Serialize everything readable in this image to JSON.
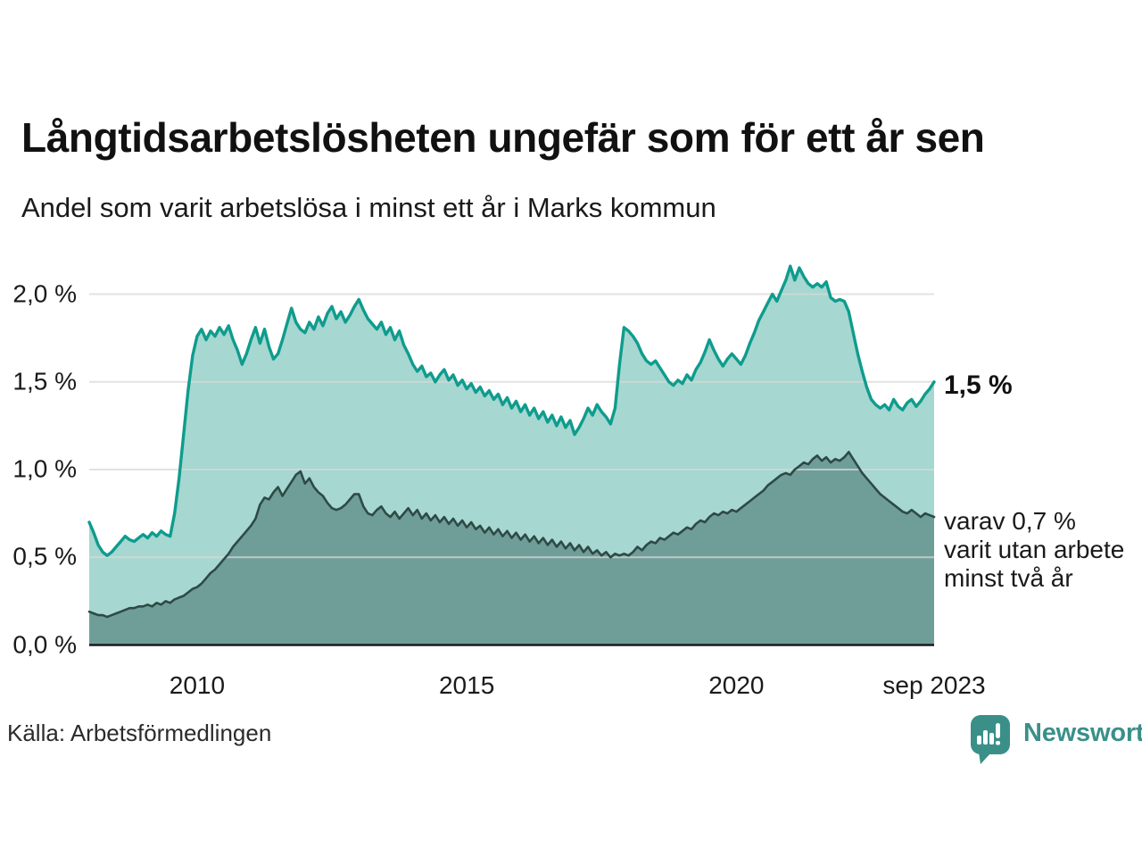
{
  "header": {
    "title": "Långtidsarbetslösheten ungefär som för ett år sen",
    "subtitle": "Andel som varit arbetslösa i minst ett år i Marks kommun"
  },
  "chart_data": {
    "type": "area",
    "title": "Långtidsarbetslösheten ungefär som för ett år sen",
    "subtitle": "Andel som varit arbetslösa i minst ett år i Marks kommun",
    "unit": "%",
    "frequency": "monthly",
    "x_start": "2008-01",
    "x_end": "2023-09",
    "ylim": [
      0,
      2.2
    ],
    "grid": "horizontal",
    "y_ticks": [
      {
        "value": 0.0,
        "label": "0,0 %"
      },
      {
        "value": 0.5,
        "label": "0,5 %"
      },
      {
        "value": 1.0,
        "label": "1,0 %"
      },
      {
        "value": 1.5,
        "label": "1,5 %"
      },
      {
        "value": 2.0,
        "label": "2,0 %"
      }
    ],
    "x_ticks": [
      {
        "year": 2010.0,
        "label": "2010"
      },
      {
        "year": 2015.0,
        "label": "2015"
      },
      {
        "year": 2020.0,
        "label": "2020"
      },
      {
        "year": 2023.667,
        "label": "sep 2023"
      }
    ],
    "series": [
      {
        "id": "arbetslosa_minst_ett_ar",
        "latest_value_label": "1,5 %",
        "line_color": "#0e9c8d",
        "fill_color": "#a6d7d0",
        "values": [
          0.7,
          0.64,
          0.57,
          0.53,
          0.51,
          0.53,
          0.56,
          0.59,
          0.62,
          0.6,
          0.59,
          0.61,
          0.63,
          0.61,
          0.64,
          0.62,
          0.65,
          0.63,
          0.62,
          0.75,
          0.95,
          1.2,
          1.45,
          1.65,
          1.76,
          1.8,
          1.74,
          1.79,
          1.76,
          1.81,
          1.77,
          1.82,
          1.74,
          1.68,
          1.6,
          1.66,
          1.74,
          1.81,
          1.72,
          1.8,
          1.7,
          1.63,
          1.66,
          1.74,
          1.83,
          1.92,
          1.84,
          1.8,
          1.78,
          1.84,
          1.8,
          1.87,
          1.82,
          1.89,
          1.93,
          1.86,
          1.9,
          1.84,
          1.88,
          1.93,
          1.97,
          1.91,
          1.86,
          1.83,
          1.8,
          1.84,
          1.77,
          1.81,
          1.74,
          1.79,
          1.71,
          1.66,
          1.6,
          1.56,
          1.59,
          1.53,
          1.55,
          1.5,
          1.54,
          1.57,
          1.51,
          1.54,
          1.48,
          1.51,
          1.46,
          1.49,
          1.44,
          1.47,
          1.42,
          1.45,
          1.4,
          1.43,
          1.37,
          1.41,
          1.35,
          1.39,
          1.33,
          1.37,
          1.31,
          1.35,
          1.29,
          1.33,
          1.27,
          1.31,
          1.25,
          1.3,
          1.24,
          1.28,
          1.2,
          1.24,
          1.29,
          1.35,
          1.31,
          1.37,
          1.33,
          1.3,
          1.26,
          1.35,
          1.6,
          1.81,
          1.79,
          1.76,
          1.72,
          1.66,
          1.62,
          1.6,
          1.62,
          1.58,
          1.54,
          1.5,
          1.48,
          1.51,
          1.49,
          1.54,
          1.51,
          1.57,
          1.61,
          1.67,
          1.74,
          1.68,
          1.63,
          1.59,
          1.63,
          1.66,
          1.63,
          1.6,
          1.65,
          1.72,
          1.78,
          1.85,
          1.9,
          1.95,
          2.0,
          1.96,
          2.02,
          2.08,
          2.16,
          2.08,
          2.15,
          2.1,
          2.06,
          2.04,
          2.06,
          2.04,
          2.07,
          1.98,
          1.96,
          1.97,
          1.96,
          1.9,
          1.78,
          1.66,
          1.56,
          1.47,
          1.4,
          1.37,
          1.35,
          1.37,
          1.34,
          1.4,
          1.36,
          1.34,
          1.38,
          1.4,
          1.36,
          1.39,
          1.43,
          1.46,
          1.5
        ]
      },
      {
        "id": "varav_utan_arbete_minst_tva_ar",
        "latest_value_label": "0,7 %",
        "line_color": "#2e4a46",
        "fill_color": "#6f9e98",
        "values": [
          0.19,
          0.18,
          0.17,
          0.17,
          0.16,
          0.17,
          0.18,
          0.19,
          0.2,
          0.21,
          0.21,
          0.22,
          0.22,
          0.23,
          0.22,
          0.24,
          0.23,
          0.25,
          0.24,
          0.26,
          0.27,
          0.28,
          0.3,
          0.32,
          0.33,
          0.35,
          0.38,
          0.41,
          0.43,
          0.46,
          0.49,
          0.52,
          0.56,
          0.59,
          0.62,
          0.65,
          0.68,
          0.72,
          0.8,
          0.84,
          0.83,
          0.87,
          0.9,
          0.85,
          0.89,
          0.93,
          0.97,
          0.99,
          0.92,
          0.95,
          0.9,
          0.87,
          0.85,
          0.81,
          0.78,
          0.77,
          0.78,
          0.8,
          0.83,
          0.86,
          0.86,
          0.79,
          0.75,
          0.74,
          0.77,
          0.79,
          0.75,
          0.73,
          0.76,
          0.72,
          0.75,
          0.78,
          0.74,
          0.77,
          0.72,
          0.75,
          0.71,
          0.74,
          0.7,
          0.73,
          0.69,
          0.72,
          0.68,
          0.71,
          0.67,
          0.7,
          0.66,
          0.68,
          0.64,
          0.67,
          0.63,
          0.66,
          0.62,
          0.65,
          0.61,
          0.64,
          0.6,
          0.63,
          0.59,
          0.62,
          0.58,
          0.61,
          0.57,
          0.6,
          0.56,
          0.59,
          0.55,
          0.58,
          0.54,
          0.57,
          0.53,
          0.56,
          0.52,
          0.54,
          0.51,
          0.53,
          0.5,
          0.52,
          0.51,
          0.52,
          0.51,
          0.53,
          0.56,
          0.54,
          0.57,
          0.59,
          0.58,
          0.61,
          0.6,
          0.62,
          0.64,
          0.63,
          0.65,
          0.67,
          0.66,
          0.69,
          0.71,
          0.7,
          0.73,
          0.75,
          0.74,
          0.76,
          0.75,
          0.77,
          0.76,
          0.78,
          0.8,
          0.82,
          0.84,
          0.86,
          0.88,
          0.91,
          0.93,
          0.95,
          0.97,
          0.98,
          0.97,
          1.0,
          1.02,
          1.04,
          1.03,
          1.06,
          1.08,
          1.05,
          1.07,
          1.04,
          1.06,
          1.05,
          1.07,
          1.1,
          1.06,
          1.02,
          0.98,
          0.95,
          0.92,
          0.89,
          0.86,
          0.84,
          0.82,
          0.8,
          0.78,
          0.76,
          0.75,
          0.77,
          0.75,
          0.73,
          0.75,
          0.74,
          0.73
        ]
      }
    ],
    "annotations": [
      {
        "text": "1,5 %",
        "bold": true
      },
      {
        "text": "varav 0,7 % varit utan arbete minst två år",
        "bold": false
      }
    ]
  },
  "annotations": {
    "latest_total": "1,5 %",
    "two_year_lines": [
      "varav 0,7 %",
      "varit utan arbete",
      "minst två år"
    ]
  },
  "footer": {
    "source": "Källa: Arbetsförmedlingen",
    "logo_text": "Newsworthy"
  },
  "colors": {
    "total_line": "#0e9c8d",
    "total_fill": "#a6d7d0",
    "two_year_line": "#2e4a46",
    "two_year_fill": "#6f9e98",
    "gridline": "#d8d8d8",
    "axis": "#1a1a1a",
    "logo_teal": "#3a9089"
  }
}
